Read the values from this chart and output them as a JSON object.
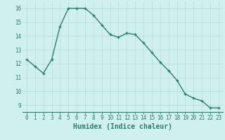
{
  "x": [
    0,
    1,
    2,
    3,
    4,
    5,
    6,
    7,
    8,
    9,
    10,
    11,
    12,
    13,
    14,
    15,
    16,
    17,
    18,
    19,
    20,
    21,
    22,
    23
  ],
  "y": [
    12.3,
    11.8,
    11.3,
    12.3,
    14.7,
    16.0,
    16.0,
    16.0,
    15.5,
    14.8,
    14.1,
    13.9,
    14.2,
    14.1,
    13.5,
    12.8,
    12.1,
    11.5,
    10.8,
    9.8,
    9.5,
    9.3,
    8.8,
    8.8
  ],
  "line_color": "#2e7d6e",
  "marker": "+",
  "bg_color": "#cff0ec",
  "grid_color": "#b8ddd8",
  "xlabel": "Humidex (Indice chaleur)",
  "tick_color": "#2e7d6e",
  "ylim": [
    8.5,
    16.5
  ],
  "xlim": [
    -0.5,
    23.5
  ],
  "yticks": [
    9,
    10,
    11,
    12,
    13,
    14,
    15,
    16
  ],
  "xticks": [
    0,
    1,
    2,
    3,
    4,
    5,
    6,
    7,
    8,
    9,
    10,
    11,
    12,
    13,
    14,
    15,
    16,
    17,
    18,
    19,
    20,
    21,
    22,
    23
  ],
  "tick_fontsize": 5.5,
  "xlabel_fontsize": 7.0
}
